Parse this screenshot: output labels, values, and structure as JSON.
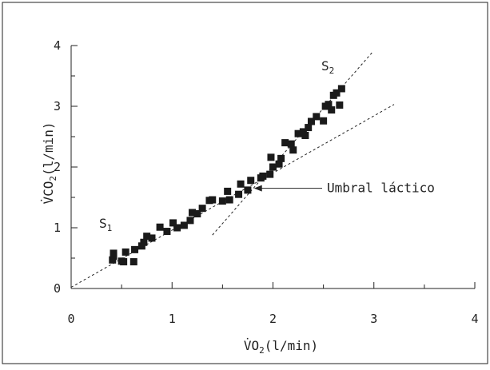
{
  "chart_data": {
    "type": "scatter",
    "xlabel_main": "V̇O",
    "xlabel_sub": "2",
    "xlabel_unit": "(l/min)",
    "ylabel_main": "V̇CO",
    "ylabel_sub": "2",
    "ylabel_unit": "(l/min)",
    "xlim": [
      0,
      4
    ],
    "ylim": [
      0,
      4
    ],
    "x_ticks": [
      "0",
      "1",
      "2",
      "3",
      "4"
    ],
    "y_ticks": [
      "0",
      "1",
      "2",
      "3",
      "4"
    ],
    "grid": false,
    "series": [
      {
        "points": [
          [
            0.41,
            0.47
          ],
          [
            0.42,
            0.53
          ],
          [
            0.42,
            0.58
          ],
          [
            0.5,
            0.45
          ],
          [
            0.52,
            0.44
          ],
          [
            0.54,
            0.6
          ],
          [
            0.62,
            0.44
          ],
          [
            0.63,
            0.64
          ],
          [
            0.7,
            0.7
          ],
          [
            0.72,
            0.76
          ],
          [
            0.75,
            0.86
          ],
          [
            0.8,
            0.83
          ],
          [
            0.88,
            1.01
          ],
          [
            0.95,
            0.94
          ],
          [
            1.01,
            1.08
          ],
          [
            1.05,
            1.0
          ],
          [
            1.12,
            1.04
          ],
          [
            1.18,
            1.12
          ],
          [
            1.2,
            1.25
          ],
          [
            1.25,
            1.23
          ],
          [
            1.3,
            1.32
          ],
          [
            1.37,
            1.45
          ],
          [
            1.4,
            1.46
          ],
          [
            1.5,
            1.44
          ],
          [
            1.55,
            1.6
          ],
          [
            1.57,
            1.46
          ],
          [
            1.66,
            1.55
          ],
          [
            1.68,
            1.72
          ],
          [
            1.75,
            1.62
          ],
          [
            1.78,
            1.78
          ],
          [
            1.88,
            1.82
          ],
          [
            1.9,
            1.85
          ],
          [
            1.97,
            1.88
          ],
          [
            1.98,
            2.16
          ],
          [
            2.0,
            2.0
          ],
          [
            2.06,
            2.05
          ],
          [
            2.08,
            2.14
          ],
          [
            2.12,
            2.4
          ],
          [
            2.18,
            2.38
          ],
          [
            2.2,
            2.28
          ],
          [
            2.25,
            2.55
          ],
          [
            2.3,
            2.58
          ],
          [
            2.32,
            2.52
          ],
          [
            2.35,
            2.65
          ],
          [
            2.38,
            2.75
          ],
          [
            2.43,
            2.83
          ],
          [
            2.5,
            2.76
          ],
          [
            2.52,
            3.0
          ],
          [
            2.55,
            3.03
          ],
          [
            2.58,
            2.94
          ],
          [
            2.6,
            3.18
          ],
          [
            2.63,
            3.22
          ],
          [
            2.66,
            3.02
          ],
          [
            2.68,
            3.29
          ]
        ]
      }
    ],
    "fit_lines": [
      {
        "name": "S1",
        "from": [
          0.0,
          0.02
        ],
        "to": [
          3.2,
          3.03
        ]
      },
      {
        "name": "S2",
        "from": [
          1.4,
          0.88
        ],
        "to": [
          2.98,
          3.88
        ]
      }
    ],
    "annotations": [
      {
        "id": "s1",
        "main": "S",
        "sub": "1"
      },
      {
        "id": "s2",
        "main": "S",
        "sub": "2"
      },
      {
        "id": "umbral",
        "text": "Umbral láctico",
        "arrow_target": [
          1.78,
          1.65
        ]
      }
    ]
  }
}
